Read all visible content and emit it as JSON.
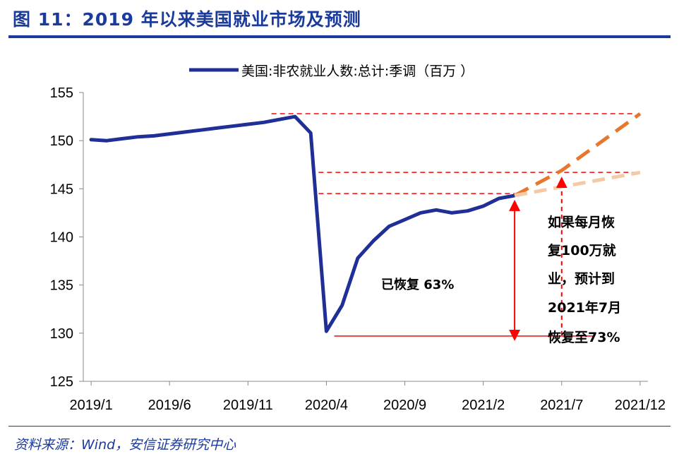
{
  "header": {
    "title": "图 11：2019 年以来美国就业市场及预测"
  },
  "footer": {
    "source": "资料来源：Wind，安信证券研究中心"
  },
  "colors": {
    "title": "#1a3a9c",
    "series_main": "#1f2f96",
    "projection_fast": "#e8772e",
    "projection_slow": "#f6c9a6",
    "reference_lines": "#ff0000"
  },
  "chart_data": {
    "type": "line",
    "title": "",
    "xlabel": "",
    "ylabel": "",
    "ylim": [
      125,
      155
    ],
    "yticks": [
      125,
      130,
      135,
      140,
      145,
      150,
      155
    ],
    "x_tick_labels": [
      "2019/1",
      "2019/6",
      "2019/11",
      "2020/4",
      "2020/9",
      "2021/2",
      "2021/7",
      "2021/12"
    ],
    "x_tick_months": [
      "2019-01",
      "2019-06",
      "2019-11",
      "2020-04",
      "2020-09",
      "2021-02",
      "2021-07",
      "2021-12"
    ],
    "legend": {
      "placement": "top-center",
      "entries": [
        "美国:非农就业人数:总计:季调（百万 ）"
      ]
    },
    "series": [
      {
        "name": "美国:非农就业人数:总计:季调（百万 ）",
        "style": "solid",
        "months": [
          "2019-01",
          "2019-02",
          "2019-03",
          "2019-04",
          "2019-05",
          "2019-06",
          "2019-07",
          "2019-08",
          "2019-09",
          "2019-10",
          "2019-11",
          "2019-12",
          "2020-01",
          "2020-02",
          "2020-03",
          "2020-04",
          "2020-05",
          "2020-06",
          "2020-07",
          "2020-08",
          "2020-09",
          "2020-10",
          "2020-11",
          "2020-12",
          "2021-01",
          "2021-02",
          "2021-03",
          "2021-04"
        ],
        "values": [
          150.1,
          150.0,
          150.2,
          150.4,
          150.5,
          150.7,
          150.9,
          151.1,
          151.3,
          151.5,
          151.7,
          151.9,
          152.2,
          152.5,
          150.8,
          130.2,
          132.9,
          137.8,
          139.6,
          141.1,
          141.8,
          142.5,
          142.8,
          142.5,
          142.7,
          143.2,
          144.0,
          144.3
        ]
      },
      {
        "name": "",
        "style": "dashed-fast",
        "months": [
          "2021-04",
          "2021-07",
          "2021-12"
        ],
        "values": [
          144.3,
          146.9,
          152.8
        ]
      },
      {
        "name": "",
        "style": "dashed-slow",
        "months": [
          "2021-04",
          "2021-07",
          "2021-12"
        ],
        "values": [
          144.3,
          145.2,
          146.7
        ]
      }
    ],
    "reference_lines": [
      {
        "value": 152.8,
        "from": "2020-01",
        "to": "2021-12"
      },
      {
        "value": 146.7,
        "from": "2020-04",
        "to": "2021-12"
      },
      {
        "value": 144.5,
        "from": "2020-04",
        "to": "2021-04"
      },
      {
        "value": 129.7,
        "from": "2020-05",
        "to": "2021-09"
      }
    ],
    "arrows": [
      {
        "month": "2021-04",
        "from": 129.7,
        "to": 144.3
      },
      {
        "month": "2021-07",
        "from": 129.7,
        "to": 146.7
      }
    ],
    "annotations": {
      "recovered": "已恢复 63%",
      "projection_lines": [
        "如果每月恢",
        "复100万就",
        "业，预计到",
        "2021年7月",
        "恢复至73%"
      ]
    }
  }
}
